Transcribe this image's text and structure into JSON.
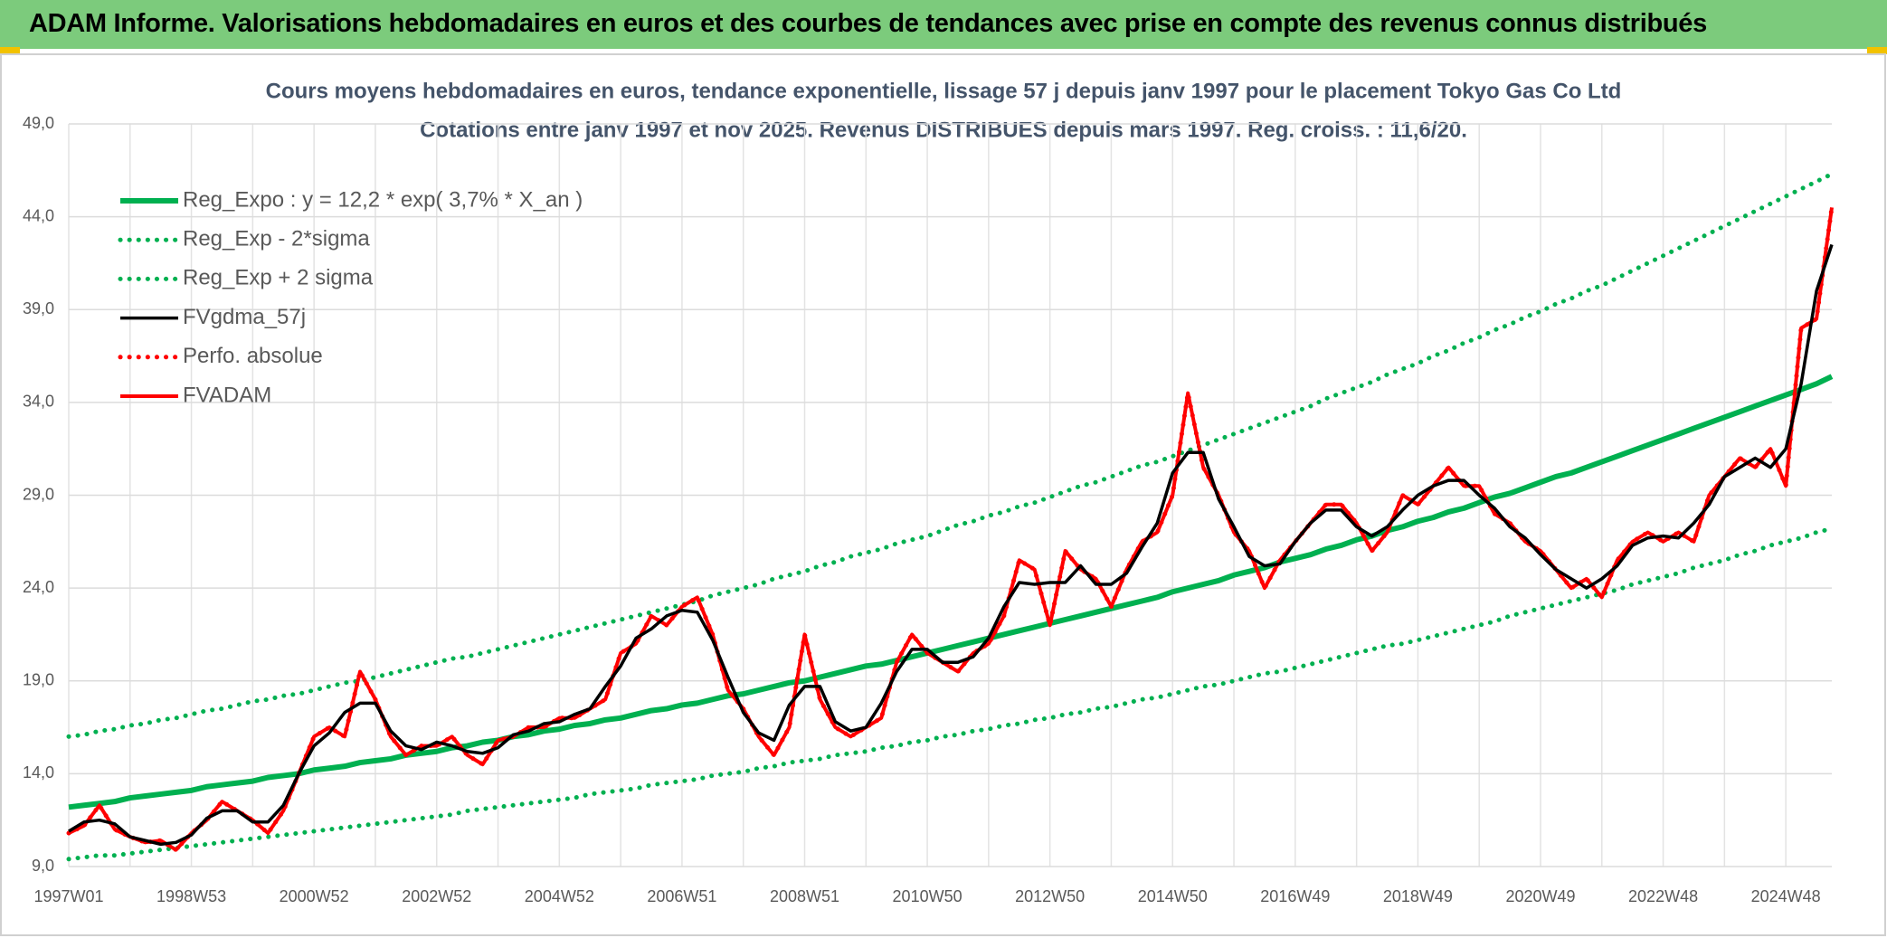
{
  "header": {
    "title": "ADAM Informe. Valorisations hebdomadaires en euros et des courbes de tendances avec prise en compte des revenus connus distribués"
  },
  "chart_data": {
    "type": "line",
    "title": "Cours moyens hebdomadaires en euros, tendance exponentielle, lissage 57 j depuis janv 1997 pour le placement Tokyo Gas Co Ltd",
    "subtitle": "Cotations entre janv 1997 et nov 2025. Revenus DISTRIBUES depuis mars 1997. Reg. croiss. : 11,6/20.",
    "categories": [
      "1997W01",
      null,
      null,
      null,
      null,
      null,
      null,
      null,
      "1998W53",
      null,
      null,
      null,
      null,
      null,
      null,
      null,
      "2000W52",
      null,
      null,
      null,
      null,
      null,
      null,
      null,
      "2002W52",
      null,
      null,
      null,
      null,
      null,
      null,
      null,
      "2004W52",
      null,
      null,
      null,
      null,
      null,
      null,
      null,
      "2006W51",
      null,
      null,
      null,
      null,
      null,
      null,
      null,
      "2008W51",
      null,
      null,
      null,
      null,
      null,
      null,
      null,
      "2010W50",
      null,
      null,
      null,
      null,
      null,
      null,
      null,
      "2012W50",
      null,
      null,
      null,
      null,
      null,
      null,
      null,
      "2014W50",
      null,
      null,
      null,
      null,
      null,
      null,
      null,
      "2016W49",
      null,
      null,
      null,
      null,
      null,
      null,
      null,
      "2018W49",
      null,
      null,
      null,
      null,
      null,
      null,
      null,
      "2020W49",
      null,
      null,
      null,
      null,
      null,
      null,
      null,
      "2022W48",
      null,
      null,
      null,
      null,
      null,
      null,
      null,
      "2024W48",
      null,
      null,
      null
    ],
    "ylim": [
      9,
      49
    ],
    "yticks": [
      {
        "value": 9,
        "label": "9,0"
      },
      {
        "value": 14,
        "label": "14,0"
      },
      {
        "value": 19,
        "label": "19,0"
      },
      {
        "value": 24,
        "label": "24,0"
      },
      {
        "value": 29,
        "label": "29,0"
      },
      {
        "value": 34,
        "label": "34,0"
      },
      {
        "value": 39,
        "label": "39,0"
      },
      {
        "value": 44,
        "label": "44,0"
      },
      {
        "value": 49,
        "label": "49,0"
      }
    ],
    "grid": true,
    "legend": "upper-left",
    "series": [
      {
        "name": "Reg_Expo : y = 12,2 * exp( 3,7% *  X_an )",
        "color": "#00b050",
        "line_style": "solid",
        "values": [
          12.2,
          12.3,
          12.4,
          12.5,
          12.7,
          12.8,
          12.9,
          13.0,
          13.1,
          13.3,
          13.4,
          13.5,
          13.6,
          13.8,
          13.9,
          14.0,
          14.2,
          14.3,
          14.4,
          14.6,
          14.7,
          14.8,
          15.0,
          15.1,
          15.2,
          15.4,
          15.5,
          15.7,
          15.8,
          16.0,
          16.1,
          16.3,
          16.4,
          16.6,
          16.7,
          16.9,
          17.0,
          17.2,
          17.4,
          17.5,
          17.7,
          17.8,
          18.0,
          18.2,
          18.3,
          18.5,
          18.7,
          18.9,
          19.0,
          19.2,
          19.4,
          19.6,
          19.8,
          19.9,
          20.1,
          20.3,
          20.5,
          20.7,
          20.9,
          21.1,
          21.3,
          21.5,
          21.7,
          21.9,
          22.1,
          22.3,
          22.5,
          22.7,
          22.9,
          23.1,
          23.3,
          23.5,
          23.8,
          24.0,
          24.2,
          24.4,
          24.7,
          24.9,
          25.1,
          25.4,
          25.6,
          25.8,
          26.1,
          26.3,
          26.6,
          26.8,
          27.1,
          27.3,
          27.6,
          27.8,
          28.1,
          28.3,
          28.6,
          28.9,
          29.1,
          29.4,
          29.7,
          30.0,
          30.2,
          30.5,
          30.8,
          31.1,
          31.4,
          31.7,
          32.0,
          32.3,
          32.6,
          32.9,
          33.2,
          33.5,
          33.8,
          34.1,
          34.4,
          34.7,
          35.0,
          35.4
        ]
      },
      {
        "name": "Reg_Exp - 2*sigma",
        "color": "#00b050",
        "line_style": "dotted",
        "values": [
          9.4,
          9.5,
          9.6,
          9.6,
          9.7,
          9.8,
          9.9,
          10.0,
          10.1,
          10.2,
          10.3,
          10.4,
          10.5,
          10.6,
          10.7,
          10.8,
          10.9,
          11.0,
          11.1,
          11.2,
          11.3,
          11.4,
          11.5,
          11.6,
          11.7,
          11.8,
          12.0,
          12.1,
          12.2,
          12.3,
          12.4,
          12.5,
          12.6,
          12.7,
          12.9,
          13.0,
          13.1,
          13.2,
          13.4,
          13.5,
          13.6,
          13.7,
          13.9,
          14.0,
          14.1,
          14.3,
          14.4,
          14.6,
          14.7,
          14.8,
          15.0,
          15.1,
          15.2,
          15.4,
          15.5,
          15.7,
          15.8,
          16.0,
          16.1,
          16.3,
          16.4,
          16.6,
          16.7,
          16.9,
          17.0,
          17.2,
          17.3,
          17.5,
          17.6,
          17.8,
          18.0,
          18.1,
          18.3,
          18.5,
          18.7,
          18.8,
          19.0,
          19.2,
          19.4,
          19.5,
          19.7,
          19.9,
          20.1,
          20.3,
          20.5,
          20.7,
          20.9,
          21.0,
          21.2,
          21.4,
          21.6,
          21.8,
          22.0,
          22.2,
          22.5,
          22.7,
          22.9,
          23.1,
          23.3,
          23.5,
          23.7,
          23.9,
          24.2,
          24.4,
          24.6,
          24.8,
          25.1,
          25.3,
          25.5,
          25.8,
          26.0,
          26.3,
          26.5,
          26.7,
          27.0,
          27.2
        ]
      },
      {
        "name": "Reg_Exp + 2 sigma",
        "color": "#00b050",
        "line_style": "dotted",
        "values": [
          16.0,
          16.1,
          16.3,
          16.4,
          16.6,
          16.7,
          16.9,
          17.0,
          17.2,
          17.4,
          17.5,
          17.7,
          17.9,
          18.0,
          18.2,
          18.3,
          18.5,
          18.7,
          18.9,
          19.0,
          19.2,
          19.4,
          19.6,
          19.8,
          20.0,
          20.2,
          20.3,
          20.5,
          20.7,
          20.9,
          21.1,
          21.3,
          21.5,
          21.7,
          21.9,
          22.1,
          22.3,
          22.5,
          22.7,
          22.9,
          23.1,
          23.3,
          23.6,
          23.8,
          24.0,
          24.2,
          24.5,
          24.7,
          24.9,
          25.2,
          25.4,
          25.7,
          25.9,
          26.1,
          26.4,
          26.6,
          26.8,
          27.1,
          27.4,
          27.6,
          27.9,
          28.1,
          28.4,
          28.6,
          28.9,
          29.2,
          29.5,
          29.7,
          30.0,
          30.3,
          30.6,
          30.8,
          31.1,
          31.4,
          31.7,
          32.0,
          32.3,
          32.6,
          32.9,
          33.2,
          33.5,
          33.8,
          34.2,
          34.5,
          34.8,
          35.1,
          35.5,
          35.8,
          36.1,
          36.5,
          36.8,
          37.2,
          37.5,
          37.9,
          38.2,
          38.6,
          38.9,
          39.3,
          39.6,
          40.0,
          40.3,
          40.7,
          41.1,
          41.5,
          41.9,
          42.3,
          42.7,
          43.1,
          43.5,
          43.9,
          44.3,
          44.7,
          45.1,
          45.5,
          45.9,
          46.3
        ]
      },
      {
        "name": "FVgdma_57j",
        "color": "#000000",
        "line_style": "solid",
        "values": [
          10.9,
          11.4,
          11.5,
          11.3,
          10.6,
          10.4,
          10.2,
          10.3,
          10.7,
          11.6,
          12.0,
          12.0,
          11.4,
          11.4,
          12.3,
          14.0,
          15.5,
          16.2,
          17.3,
          17.8,
          17.8,
          16.3,
          15.5,
          15.3,
          15.7,
          15.5,
          15.2,
          15.1,
          15.4,
          16.1,
          16.3,
          16.7,
          16.8,
          17.2,
          17.5,
          18.7,
          19.8,
          21.3,
          21.8,
          22.5,
          22.8,
          22.7,
          21.2,
          19.2,
          17.3,
          16.2,
          15.8,
          17.7,
          18.7,
          18.7,
          16.8,
          16.3,
          16.5,
          17.8,
          19.5,
          20.7,
          20.7,
          20.0,
          20.0,
          20.3,
          21.3,
          23.0,
          24.3,
          24.2,
          24.3,
          24.3,
          25.2,
          24.2,
          24.2,
          24.8,
          26.2,
          27.5,
          30.2,
          31.3,
          31.3,
          28.8,
          27.3,
          25.7,
          25.2,
          25.3,
          26.5,
          27.5,
          28.2,
          28.2,
          27.3,
          26.8,
          27.3,
          28.2,
          29.0,
          29.5,
          29.8,
          29.8,
          29.0,
          28.3,
          27.3,
          26.7,
          25.8,
          25.0,
          24.5,
          24.0,
          24.5,
          25.2,
          26.3,
          26.7,
          26.8,
          26.7,
          27.5,
          28.5,
          30.0,
          30.5,
          31.0,
          30.5,
          31.5,
          35.0,
          40.0,
          42.5
        ]
      },
      {
        "name": "Perfo. absolue",
        "color": "#ff0000",
        "line_style": "dotted",
        "values": [
          10.8,
          11.2,
          12.3,
          11.0,
          10.6,
          10.3,
          10.4,
          9.9,
          10.8,
          11.5,
          12.5,
          12.0,
          11.5,
          10.8,
          12.0,
          14.0,
          16.0,
          16.5,
          16.0,
          19.5,
          18.0,
          16.0,
          15.0,
          15.5,
          15.5,
          16.0,
          15.0,
          14.5,
          15.8,
          16.0,
          16.5,
          16.5,
          17.0,
          17.0,
          17.5,
          18.0,
          20.5,
          21.0,
          22.5,
          22.0,
          23.0,
          23.5,
          21.5,
          18.5,
          17.5,
          16.0,
          15.0,
          16.5,
          21.5,
          18.0,
          16.5,
          16.0,
          16.5,
          17.0,
          20.0,
          21.5,
          20.5,
          20.0,
          19.5,
          20.5,
          21.0,
          22.5,
          25.5,
          25.0,
          22.0,
          26.0,
          25.0,
          24.5,
          23.0,
          25.0,
          26.5,
          27.0,
          29.0,
          34.5,
          30.5,
          29.0,
          27.0,
          26.0,
          24.0,
          25.5,
          26.5,
          27.5,
          28.5,
          28.5,
          27.5,
          26.0,
          27.0,
          29.0,
          28.5,
          29.5,
          30.5,
          29.5,
          29.5,
          28.0,
          27.5,
          26.5,
          26.0,
          25.0,
          24.0,
          24.5,
          23.5,
          25.5,
          26.5,
          27.0,
          26.5,
          27.0,
          26.5,
          29.0,
          30.0,
          31.0,
          30.5,
          31.5,
          29.5,
          38.0,
          38.5,
          44.5
        ]
      },
      {
        "name": "FVADAM",
        "color": "#ff0000",
        "line_style": "solid",
        "values": [
          10.8,
          11.2,
          12.3,
          11.0,
          10.6,
          10.3,
          10.4,
          9.9,
          10.8,
          11.5,
          12.5,
          12.0,
          11.5,
          10.8,
          12.0,
          14.0,
          16.0,
          16.5,
          16.0,
          19.5,
          18.0,
          16.0,
          15.0,
          15.5,
          15.5,
          16.0,
          15.0,
          14.5,
          15.8,
          16.0,
          16.5,
          16.5,
          17.0,
          17.0,
          17.5,
          18.0,
          20.5,
          21.0,
          22.5,
          22.0,
          23.0,
          23.5,
          21.5,
          18.5,
          17.5,
          16.0,
          15.0,
          16.5,
          21.5,
          18.0,
          16.5,
          16.0,
          16.5,
          17.0,
          20.0,
          21.5,
          20.5,
          20.0,
          19.5,
          20.5,
          21.0,
          22.5,
          25.5,
          25.0,
          22.0,
          26.0,
          25.0,
          24.5,
          23.0,
          25.0,
          26.5,
          27.0,
          29.0,
          34.5,
          30.5,
          29.0,
          27.0,
          26.0,
          24.0,
          25.5,
          26.5,
          27.5,
          28.5,
          28.5,
          27.5,
          26.0,
          27.0,
          29.0,
          28.5,
          29.5,
          30.5,
          29.5,
          29.5,
          28.0,
          27.5,
          26.5,
          26.0,
          25.0,
          24.0,
          24.5,
          23.5,
          25.5,
          26.5,
          27.0,
          26.5,
          27.0,
          26.5,
          29.0,
          30.0,
          31.0,
          30.5,
          31.5,
          29.5,
          38.0,
          38.5,
          44.5
        ]
      }
    ]
  }
}
